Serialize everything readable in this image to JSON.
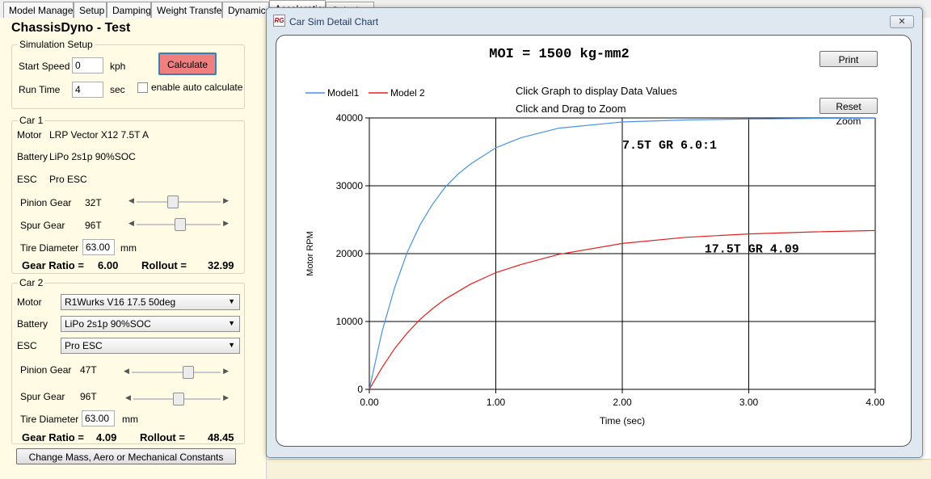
{
  "tabs": [
    "Model Manager",
    "Setup",
    "Damping",
    "Weight Transfer",
    "Dynamics",
    "Acceleration",
    "Calculator"
  ],
  "app_title": "ChassisDyno - Test",
  "sim_setup": {
    "title": "Simulation Setup",
    "start_speed_label": "Start Speed",
    "start_speed_value": "0",
    "start_speed_unit": "kph",
    "run_time_label": "Run Time",
    "run_time_value": "4",
    "run_time_unit": "sec",
    "calculate_label": "Calculate",
    "auto_calc_label": "enable auto calculate"
  },
  "car1": {
    "title": "Car 1",
    "motor_label": "Motor",
    "motor_value": "LRP Vector X12 7.5T A",
    "battery_label": "Battery",
    "battery_value": "LiPo 2s1p 90%SOC",
    "esc_label": "ESC",
    "esc_value": "Pro ESC",
    "pinion_label": "Pinion Gear",
    "pinion_value": "32T",
    "pinion_level": 0.42,
    "spur_label": "Spur Gear",
    "spur_value": "96T",
    "spur_level": 0.52,
    "tire_label": "Tire Diameter",
    "tire_value": "63.00",
    "tire_unit": "mm",
    "gear_ratio_label": "Gear Ratio =",
    "gear_ratio_value": "6.00",
    "rollout_label": "Rollout =",
    "rollout_value": "32.99"
  },
  "car2": {
    "title": "Car 2",
    "motor_label": "Motor",
    "motor_value": "R1Wurks V16 17.5 50deg",
    "battery_label": "Battery",
    "battery_value": "LiPo 2s1p 90%SOC",
    "esc_label": "ESC",
    "esc_value": "Pro ESC",
    "pinion_label": "Pinion Gear",
    "pinion_value": "47T",
    "pinion_level": 0.66,
    "spur_label": "Spur Gear",
    "spur_value": "96T",
    "spur_level": 0.52,
    "tire_label": "Tire Diameter",
    "tire_value": "63.00",
    "tire_unit": "mm",
    "gear_ratio_label": "Gear Ratio =",
    "gear_ratio_value": "4.09",
    "rollout_label": "Rollout =",
    "rollout_value": "48.45"
  },
  "constants_button_label": "Change Mass, Aero or Mechanical Constants",
  "window": {
    "title": "Car Sim Detail Chart",
    "icon_text": "RG",
    "close_glyph": "✕",
    "print_label": "Print",
    "reset_zoom_label": "Reset Zoom",
    "hint1": "Click Graph to display Data Values",
    "hint2": "Click and Drag to Zoom"
  },
  "colors": {
    "model1": "#4a90e2",
    "model2": "#e02020",
    "calculate_button": "#f08080",
    "panel_bg": "#fffbe4"
  },
  "chart_data": {
    "type": "line",
    "title": "MOI = 1500 kg-mm2",
    "xlabel": "Time (sec)",
    "ylabel": "Motor RPM",
    "xlim": [
      0,
      4
    ],
    "ylim": [
      0,
      40000
    ],
    "xticks": [
      "0.00",
      "1.00",
      "2.00",
      "3.00",
      "4.00"
    ],
    "yticks": [
      "0",
      "10000",
      "20000",
      "30000",
      "40000"
    ],
    "grid": true,
    "legend_position": "top-left",
    "series": [
      {
        "name": "Model1",
        "x": [
          0,
          0.1,
          0.2,
          0.3,
          0.4,
          0.5,
          0.6,
          0.7,
          0.8,
          1.0,
          1.2,
          1.5,
          2.0,
          2.5,
          3.0,
          3.5,
          4.0
        ],
        "y": [
          0,
          8500,
          15000,
          20200,
          24200,
          27300,
          29800,
          31700,
          33200,
          35600,
          37100,
          38500,
          39400,
          39700,
          39850,
          39930,
          39970
        ]
      },
      {
        "name": "Model 2",
        "x": [
          0,
          0.1,
          0.2,
          0.3,
          0.4,
          0.5,
          0.6,
          0.8,
          1.0,
          1.2,
          1.5,
          2.0,
          2.5,
          3.0,
          3.5,
          4.0
        ],
        "y": [
          0,
          3200,
          6000,
          8300,
          10300,
          11900,
          13300,
          15500,
          17200,
          18400,
          19900,
          21500,
          22400,
          22900,
          23200,
          23400
        ]
      }
    ],
    "annotations": [
      {
        "text": "7.5T GR 6.0:1",
        "x": 2.0,
        "y": 35500
      },
      {
        "text": "17.5T GR 4.09",
        "x": 2.65,
        "y": 20200
      }
    ]
  }
}
